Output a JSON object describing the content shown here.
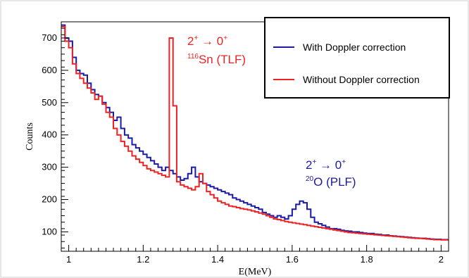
{
  "chart_data": {
    "type": "line",
    "drawstyle": "histogram-step",
    "xlabel": "E(MeV)",
    "ylabel": "Counts",
    "xlim": [
      0.98,
      2.02
    ],
    "ylim": [
      40,
      750
    ],
    "x_ticks": [
      1,
      1.2,
      1.4,
      1.6,
      1.8,
      2
    ],
    "x_tick_labels": [
      "1",
      "1.2",
      "1.4",
      "1.6",
      "1.8",
      "2"
    ],
    "y_ticks": [
      100,
      200,
      300,
      400,
      500,
      600,
      700
    ],
    "y_tick_labels": [
      "100",
      "200",
      "300",
      "400",
      "500",
      "600",
      "700"
    ],
    "grid": false,
    "bin_start": 0.98,
    "bin_width": 0.01,
    "series": [
      {
        "name": "With Doppler correction",
        "color": "#1a1aa6",
        "values": [
          740,
          700,
          690,
          640,
          600,
          590,
          585,
          560,
          540,
          525,
          520,
          500,
          485,
          470,
          445,
          455,
          420,
          400,
          390,
          370,
          360,
          350,
          340,
          330,
          320,
          310,
          300,
          290,
          300,
          290,
          280,
          270,
          260,
          265,
          280,
          300,
          270,
          255,
          250,
          245,
          240,
          235,
          230,
          225,
          220,
          215,
          205,
          200,
          195,
          190,
          185,
          180,
          175,
          170,
          160,
          155,
          150,
          145,
          150,
          145,
          140,
          150,
          170,
          185,
          195,
          190,
          170,
          145,
          130,
          125,
          120,
          115,
          110,
          110,
          108,
          105,
          103,
          102,
          100,
          100,
          98,
          96,
          95,
          95,
          93,
          92,
          90,
          90,
          88,
          87,
          86,
          85,
          84,
          83,
          82,
          81,
          80,
          80,
          79,
          78,
          77,
          77,
          76,
          76
        ]
      },
      {
        "name": "Without Doppler correction",
        "color": "#ee2222",
        "values": [
          735,
          690,
          670,
          620,
          590,
          575,
          560,
          545,
          530,
          510,
          520,
          495,
          470,
          455,
          420,
          400,
          380,
          365,
          350,
          335,
          325,
          315,
          305,
          295,
          290,
          285,
          280,
          275,
          270,
          700,
          490,
          255,
          245,
          240,
          235,
          230,
          240,
          280,
          250,
          225,
          215,
          205,
          195,
          190,
          185,
          180,
          178,
          175,
          172,
          170,
          168,
          165,
          162,
          158,
          155,
          150,
          145,
          140,
          138,
          135,
          132,
          130,
          128,
          126,
          124,
          122,
          120,
          118,
          116,
          114,
          112,
          110,
          108,
          106,
          104,
          102,
          100,
          98,
          97,
          96,
          95,
          94,
          93,
          92,
          91,
          90,
          89,
          88,
          87,
          86,
          85,
          84,
          83,
          82,
          81,
          80,
          80,
          79,
          78,
          77,
          76,
          76,
          75,
          75
        ]
      }
    ],
    "legend": {
      "position": "top-right",
      "entries": [
        "With Doppler correction",
        "Without Doppler correction"
      ]
    },
    "annotations": [
      {
        "id": "tlf",
        "color": "#ee2222",
        "line1_sup_a": "2",
        "line1_sup_a_mark": "+",
        "line1_arrow": " → ",
        "line1_sup_b": "0",
        "line1_sup_b_mark": "+",
        "line2_sup": "116",
        "line2_text": "Sn (TLF)"
      },
      {
        "id": "plf",
        "color": "#1a1aa6",
        "line1_sup_a": "2",
        "line1_sup_a_mark": "+",
        "line1_arrow": " → ",
        "line1_sup_b": "0",
        "line1_sup_b_mark": "+",
        "line2_sup": "20",
        "line2_text": "O (PLF)"
      }
    ]
  }
}
